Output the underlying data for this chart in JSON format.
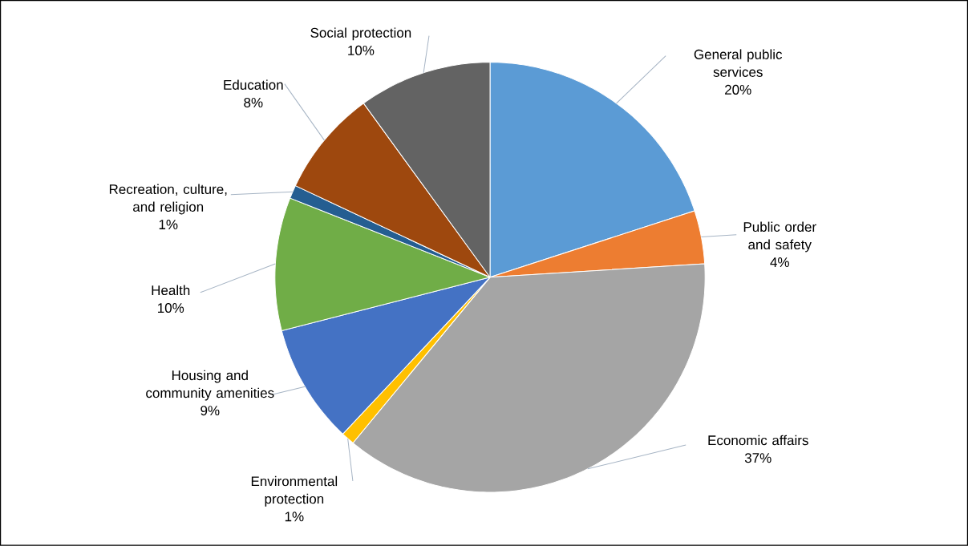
{
  "chart_data": {
    "type": "pie",
    "categories": [
      "General public services",
      "Public order and safety",
      "Economic affairs",
      "Environmental protection",
      "Housing and community amenities",
      "Health",
      "Recreation, culture, and religion",
      "Education",
      "Social protection"
    ],
    "values": [
      20,
      4,
      37,
      1,
      9,
      10,
      1,
      8,
      10
    ],
    "value_labels": [
      "20%",
      "4%",
      "37%",
      "1%",
      "9%",
      "10%",
      "1%",
      "8%",
      "10%"
    ],
    "colors": [
      "#5b9bd5",
      "#ed7d31",
      "#a5a5a5",
      "#ffc000",
      "#4472c4",
      "#70ad47",
      "#255e91",
      "#9e480e",
      "#636363"
    ]
  }
}
